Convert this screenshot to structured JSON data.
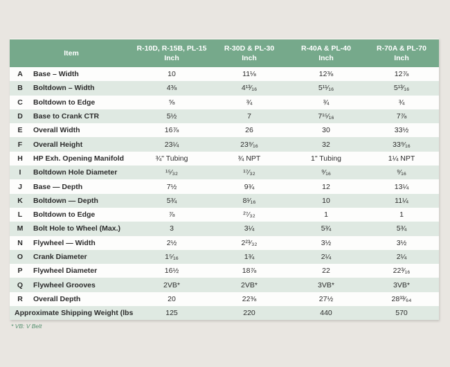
{
  "table": {
    "header": {
      "item_label": "Item",
      "columns": [
        {
          "model": "R-10D, R-15B, PL-15",
          "unit": "Inch"
        },
        {
          "model": "R-30D & PL-30",
          "unit": "Inch"
        },
        {
          "model": "R-40A & PL-40",
          "unit": "Inch"
        },
        {
          "model": "R-70A & PL-70",
          "unit": "Inch"
        }
      ]
    },
    "rows": [
      {
        "letter": "A",
        "item": "Base – Width",
        "values": [
          "10",
          "11⅛",
          "12⅜",
          "12⅞"
        ]
      },
      {
        "letter": "B",
        "item": "Boltdown – Width",
        "values": [
          "4⅜",
          "4¹³⁄₁₆",
          "5¹¹⁄₁₆",
          "5¹³⁄₁₆"
        ]
      },
      {
        "letter": "C",
        "item": "Boltdown to Edge",
        "values": [
          "⅝",
          "¾",
          "¾",
          "¾"
        ]
      },
      {
        "letter": "D",
        "item": "Base to Crank CTR",
        "values": [
          "5½",
          "7",
          "7¹⁵⁄₁₆",
          "7⅞"
        ]
      },
      {
        "letter": "E",
        "item": "Overall Width",
        "values": [
          "16⅞",
          "26",
          "30",
          "33½"
        ]
      },
      {
        "letter": "F",
        "item": "Overall Height",
        "values": [
          "23¼",
          "23⁹⁄₁₆",
          "32",
          "33⁹⁄₁₆"
        ]
      },
      {
        "letter": "H",
        "item": "HP Exh. Opening Manifold",
        "values": [
          "¾\" Tubing",
          "¾ NPT",
          "1\" Tubing",
          "1¼ NPT"
        ]
      },
      {
        "letter": "I",
        "item": "Boltdown Hole Diameter",
        "values": [
          "¹⁵⁄₃₂",
          "¹⁷⁄₃₂",
          "⁹⁄₁₆",
          "⁹⁄₁₆"
        ]
      },
      {
        "letter": "J",
        "item": "Base — Depth",
        "values": [
          "7½",
          "9¾",
          "12",
          "13¼"
        ]
      },
      {
        "letter": "K",
        "item": "Boltdown — Depth",
        "values": [
          "5¾",
          "8¹⁄₁₆",
          "10",
          "11¼"
        ]
      },
      {
        "letter": "L",
        "item": "Boltdown to Edge",
        "values": [
          "⅞",
          "²⁷⁄₃₂",
          "1",
          "1"
        ]
      },
      {
        "letter": "M",
        "item": "Bolt Hole to Wheel (Max.)",
        "values": [
          "3",
          "3¼",
          "5¾",
          "5¾"
        ]
      },
      {
        "letter": "N",
        "item": "Flywheel — Width",
        "values": [
          "2½",
          "2²³⁄₃₂",
          "3½",
          "3½"
        ]
      },
      {
        "letter": "O",
        "item": "Crank Diameter",
        "values": [
          "1⁵⁄₁₆",
          "1¾",
          "2¼",
          "2¼"
        ]
      },
      {
        "letter": "P",
        "item": "Flywheel Diameter",
        "values": [
          "16½",
          "18⅞",
          "22",
          "22³⁄₁₆"
        ]
      },
      {
        "letter": "Q",
        "item": "Flywheel Grooves",
        "values": [
          "2VB*",
          "2VB*",
          "3VB*",
          "3VB*"
        ]
      },
      {
        "letter": "R",
        "item": "Overall Depth",
        "values": [
          "20",
          "22⅜",
          "27½",
          "28³³⁄₆₄"
        ]
      }
    ],
    "footer_row": {
      "label": "Approximate Shipping Weight (lbs.)",
      "values": [
        "125",
        "220",
        "440",
        "570"
      ]
    }
  },
  "footnote": "* VB: V Belt",
  "colors": {
    "header_green": "#76a98b",
    "stripe_green": "#dfe9e2",
    "page_background": "#e9e6e1",
    "footnote_green": "#55906f",
    "text": "#2b2b2b"
  }
}
